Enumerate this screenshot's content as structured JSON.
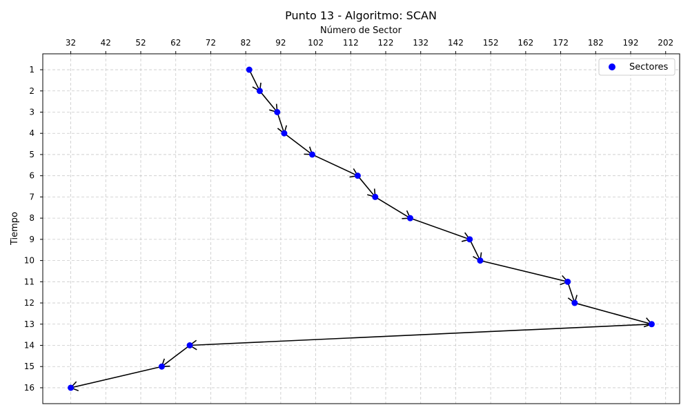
{
  "chart_data": {
    "type": "scatter",
    "title": "Punto 13 - Algoritmo: SCAN",
    "xlabel": "Número de Sector",
    "ylabel": "Tiempo",
    "x_axis_position": "top",
    "y_axis_inverted": true,
    "xlim": [
      24,
      206
    ],
    "ylim": [
      16.75,
      0.25
    ],
    "x_ticks": [
      32,
      42,
      52,
      62,
      72,
      82,
      92,
      102,
      112,
      122,
      132,
      142,
      152,
      162,
      172,
      182,
      192,
      202
    ],
    "y_ticks": [
      1,
      2,
      3,
      4,
      5,
      6,
      7,
      8,
      9,
      10,
      11,
      12,
      13,
      14,
      15,
      16
    ],
    "grid": true,
    "grid_style": "dashed",
    "legend": {
      "position": "top-right",
      "entries": [
        "Sectores"
      ]
    },
    "series": [
      {
        "name": "Sectores",
        "color": "#0000ff",
        "x": [
          83,
          86,
          91,
          93,
          101,
          114,
          119,
          129,
          146,
          149,
          174,
          176,
          198,
          66,
          58,
          32
        ],
        "y": [
          1,
          2,
          3,
          4,
          5,
          6,
          7,
          8,
          9,
          10,
          11,
          12,
          13,
          14,
          15,
          16
        ]
      }
    ],
    "path_color": "#000000",
    "path_style": "arrows"
  }
}
